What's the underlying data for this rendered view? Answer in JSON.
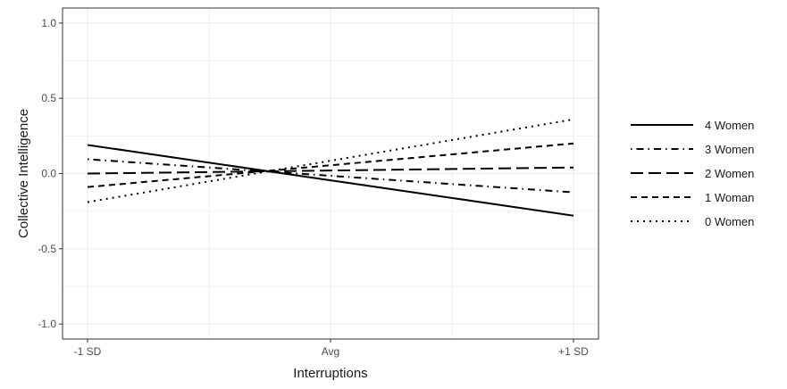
{
  "chart_data": {
    "type": "line",
    "title": "",
    "xlabel": "Interruptions",
    "ylabel": "Collective Intelligence",
    "categories": [
      "-1 SD",
      "Avg",
      "+1 SD"
    ],
    "ylim": [
      -1.1,
      1.1
    ],
    "yticks": [
      1.0,
      0.5,
      0.0,
      -0.5,
      -1.0
    ],
    "ytick_labels": [
      "1.0",
      "0.5",
      "0.0",
      "-0.5",
      "-1.0"
    ],
    "grid": true,
    "legend_position": "right",
    "series": [
      {
        "name": "4 Women",
        "style": "solid",
        "values": [
          0.19,
          -0.045,
          -0.28
        ]
      },
      {
        "name": "3 Women",
        "style": "dashdot",
        "values": [
          0.095,
          -0.015,
          -0.125
        ]
      },
      {
        "name": "2 Women",
        "style": "longdash",
        "values": [
          0.0,
          0.02,
          0.04
        ]
      },
      {
        "name": "1 Woman",
        "style": "dashed",
        "values": [
          -0.09,
          0.055,
          0.2
        ]
      },
      {
        "name": "0 Women",
        "style": "dotted",
        "values": [
          -0.19,
          0.085,
          0.36
        ]
      }
    ],
    "colors": {
      "line": "#000000",
      "grid": "#ebebeb",
      "panel_border": "#333333"
    }
  }
}
